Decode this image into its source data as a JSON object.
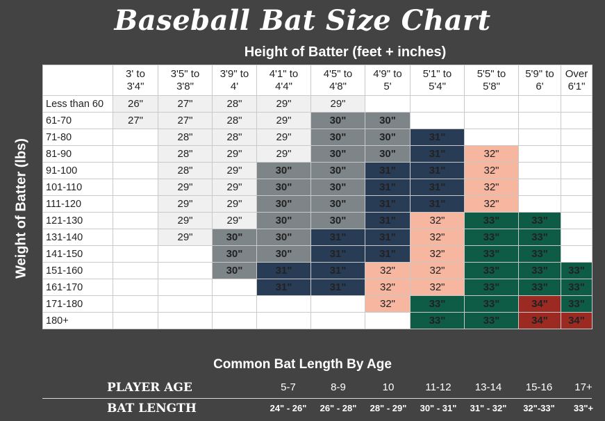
{
  "title": "Baseball Bat Size Chart",
  "x_heading": "Height of Batter (feet + inches)",
  "y_heading": "Weight of Batter (lbs)",
  "chart_data": {
    "type": "table",
    "columns": [
      "3' to 3'4\"",
      "3'5\" to 3'8\"",
      "3'9\" to 4'",
      "4'1\" to 4'4\"",
      "4'5\" to 4'8\"",
      "4'9\" to 5'",
      "5'1\" to 5'4\"",
      "5'5\" to 5'8\"",
      "5'9\" to 6'",
      "Over 6'1\""
    ],
    "rows": [
      {
        "label": "Less than 60",
        "cells": [
          "26\"",
          "27\"",
          "28\"",
          "29\"",
          "29\"",
          "",
          "",
          "",
          "",
          ""
        ]
      },
      {
        "label": "61-70",
        "cells": [
          "27\"",
          "27\"",
          "28\"",
          "29\"",
          "30\"",
          "30\"",
          "",
          "",
          "",
          ""
        ]
      },
      {
        "label": "71-80",
        "cells": [
          "",
          "28\"",
          "28\"",
          "29\"",
          "30\"",
          "30\"",
          "31\"",
          "",
          "",
          ""
        ]
      },
      {
        "label": "81-90",
        "cells": [
          "",
          "28\"",
          "29\"",
          "29\"",
          "30\"",
          "30\"",
          "31\"",
          "32\"",
          "",
          ""
        ]
      },
      {
        "label": "91-100",
        "cells": [
          "",
          "28\"",
          "29\"",
          "30\"",
          "30\"",
          "31\"",
          "31\"",
          "32\"",
          "",
          ""
        ]
      },
      {
        "label": "101-110",
        "cells": [
          "",
          "29\"",
          "29\"",
          "30\"",
          "30\"",
          "31\"",
          "31\"",
          "32\"",
          "",
          ""
        ]
      },
      {
        "label": "111-120",
        "cells": [
          "",
          "29\"",
          "29\"",
          "30\"",
          "30\"",
          "31\"",
          "31\"",
          "32\"",
          "",
          ""
        ]
      },
      {
        "label": "121-130",
        "cells": [
          "",
          "29\"",
          "29\"",
          "30\"",
          "30\"",
          "31\"",
          "32\"",
          "33\"",
          "33\"",
          ""
        ]
      },
      {
        "label": "131-140",
        "cells": [
          "",
          "29\"",
          "30\"",
          "30\"",
          "31\"",
          "31\"",
          "32\"",
          "33\"",
          "33\"",
          ""
        ]
      },
      {
        "label": "141-150",
        "cells": [
          "",
          "",
          "30\"",
          "30\"",
          "31\"",
          "31\"",
          "32\"",
          "33\"",
          "33\"",
          ""
        ]
      },
      {
        "label": "151-160",
        "cells": [
          "",
          "",
          "30\"",
          "31\"",
          "31\"",
          "32\"",
          "32\"",
          "33\"",
          "33\"",
          "33\""
        ]
      },
      {
        "label": "161-170",
        "cells": [
          "",
          "",
          "",
          "31\"",
          "31\"",
          "32\"",
          "32\"",
          "33\"",
          "33\"",
          "33\""
        ]
      },
      {
        "label": "171-180",
        "cells": [
          "",
          "",
          "",
          "",
          "",
          "32\"",
          "33\"",
          "33\"",
          "34\"",
          "33\""
        ]
      },
      {
        "label": "180+",
        "cells": [
          "",
          "",
          "",
          "",
          "",
          "",
          "33\"",
          "33\"",
          "34\"",
          "34\""
        ]
      }
    ],
    "colors": {
      "26\"": "#f0f0f0",
      "27\"": "#f0f0f0",
      "28\"": "#f0f0f0",
      "29\"": "#f0f0f0",
      "30\"": "#7d8589",
      "31\"": "#283c56",
      "32\"": "#f6b6a0",
      "33\"": "#0e5c45",
      "34\"": "#9b2a22"
    }
  },
  "age_table": {
    "title": "Common Bat Length By Age",
    "age_label": "PLAYER AGE",
    "length_label": "BAT LENGTH",
    "ages": [
      "5-7",
      "8-9",
      "10",
      "11-12",
      "13-14",
      "15-16",
      "17+"
    ],
    "lengths": [
      "24\" - 26\"",
      "26\" - 28\"",
      "28\" - 29\"",
      "30\" - 31\"",
      "31\" - 32\"",
      "32\"-33\"",
      "33\"+"
    ]
  }
}
